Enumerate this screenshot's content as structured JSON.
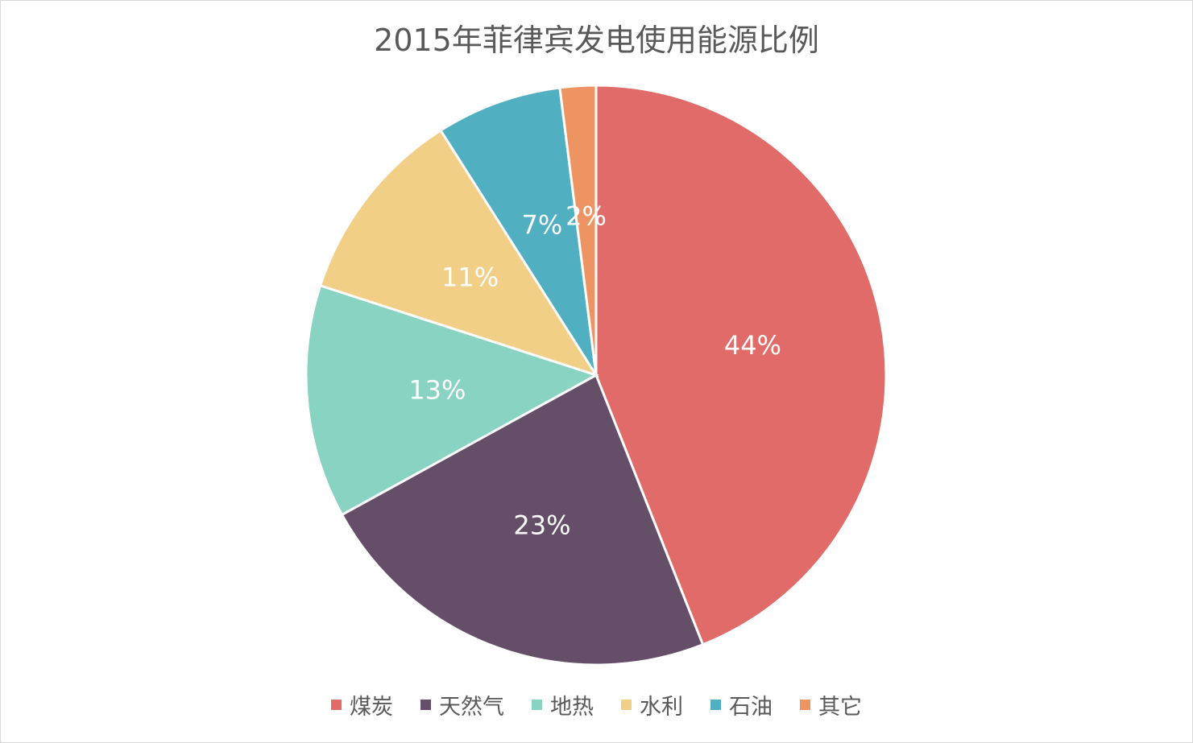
{
  "chart_data": {
    "type": "pie",
    "title": "2015年菲律宾发电使用能源比例",
    "legend_position": "bottom",
    "slices": [
      {
        "name": "煤炭",
        "value": 44,
        "label": "44%",
        "color": "#E06B69"
      },
      {
        "name": "天然气",
        "value": 23,
        "label": "23%",
        "color": "#654F68"
      },
      {
        "name": "地热",
        "value": 13,
        "label": "13%",
        "color": "#88D3C1"
      },
      {
        "name": "水利",
        "value": 11,
        "label": "11%",
        "color": "#F2CF87"
      },
      {
        "name": "石油",
        "value": 7,
        "label": "7%",
        "color": "#50AFC0"
      },
      {
        "name": "其它",
        "value": 2,
        "label": "2%",
        "color": "#EE9462"
      }
    ]
  }
}
